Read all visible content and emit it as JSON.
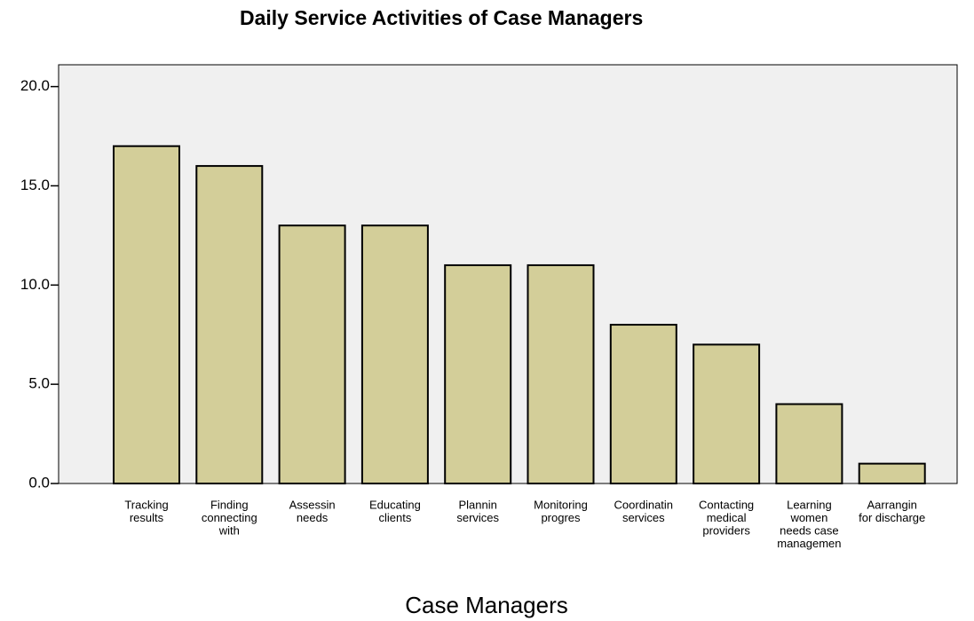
{
  "chart_data": {
    "type": "bar",
    "title": "Daily Service Activities of Case Managers",
    "x_label": "Case Managers",
    "categories": [
      [
        "Tracking",
        "results"
      ],
      [
        "Finding",
        "connecting",
        "with"
      ],
      [
        "Assessin",
        "needs"
      ],
      [
        "Educating",
        "clients"
      ],
      [
        "Plannin",
        "services"
      ],
      [
        "Monitoring",
        "progres"
      ],
      [
        "Coordinatin",
        "services"
      ],
      [
        "Contacting",
        "medical",
        "providers"
      ],
      [
        "Learning",
        "women",
        "needs case",
        "managemen"
      ],
      [
        "Aarrangin",
        "for discharge"
      ]
    ],
    "values": [
      17,
      16,
      13,
      13,
      11,
      11,
      8,
      7,
      4,
      1
    ],
    "color": "#d3ce99",
    "ylim": [
      0,
      21.1
    ],
    "yticks": [
      {
        "value": 0,
        "label": "0.0"
      },
      {
        "value": 5,
        "label": "5.0"
      },
      {
        "value": 10,
        "label": "10.0"
      },
      {
        "value": 15,
        "label": "15.0"
      },
      {
        "value": 20,
        "label": "20.0"
      }
    ],
    "grid": false
  }
}
